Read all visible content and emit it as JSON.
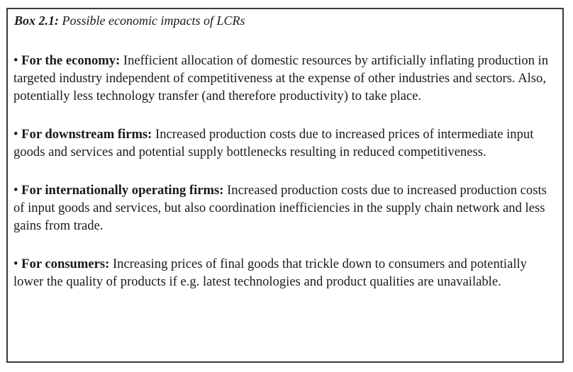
{
  "box": {
    "label": "Box 2.1:",
    "title": "Possible economic impacts of LCRs",
    "items": [
      {
        "bullet": "•",
        "heading": "For the economy:",
        "text": "Inefficient allocation of domestic resources by artificially inflating production in targeted industry independent of competitiveness at the expense of other industries and sectors. Also, potentially less technology transfer (and therefore productivity) to take place."
      },
      {
        "bullet": "•",
        "heading": "For downstream firms:",
        "text": "Increased production costs due to increased prices of intermediate input goods and services and potential supply bottlenecks resulting in reduced competitiveness."
      },
      {
        "bullet": "•",
        "heading": "For internationally operating firms:",
        "text": "Increased production costs due to increased production costs of input goods and services, but also coordination inefficiencies in the supply chain network and less gains from trade."
      },
      {
        "bullet": "•",
        "heading": "For consumers:",
        "text": "Increasing prices of final goods that trickle down to consumers and potentially lower the quality of products if e.g. latest technologies and product qualities are unavailable."
      }
    ]
  }
}
